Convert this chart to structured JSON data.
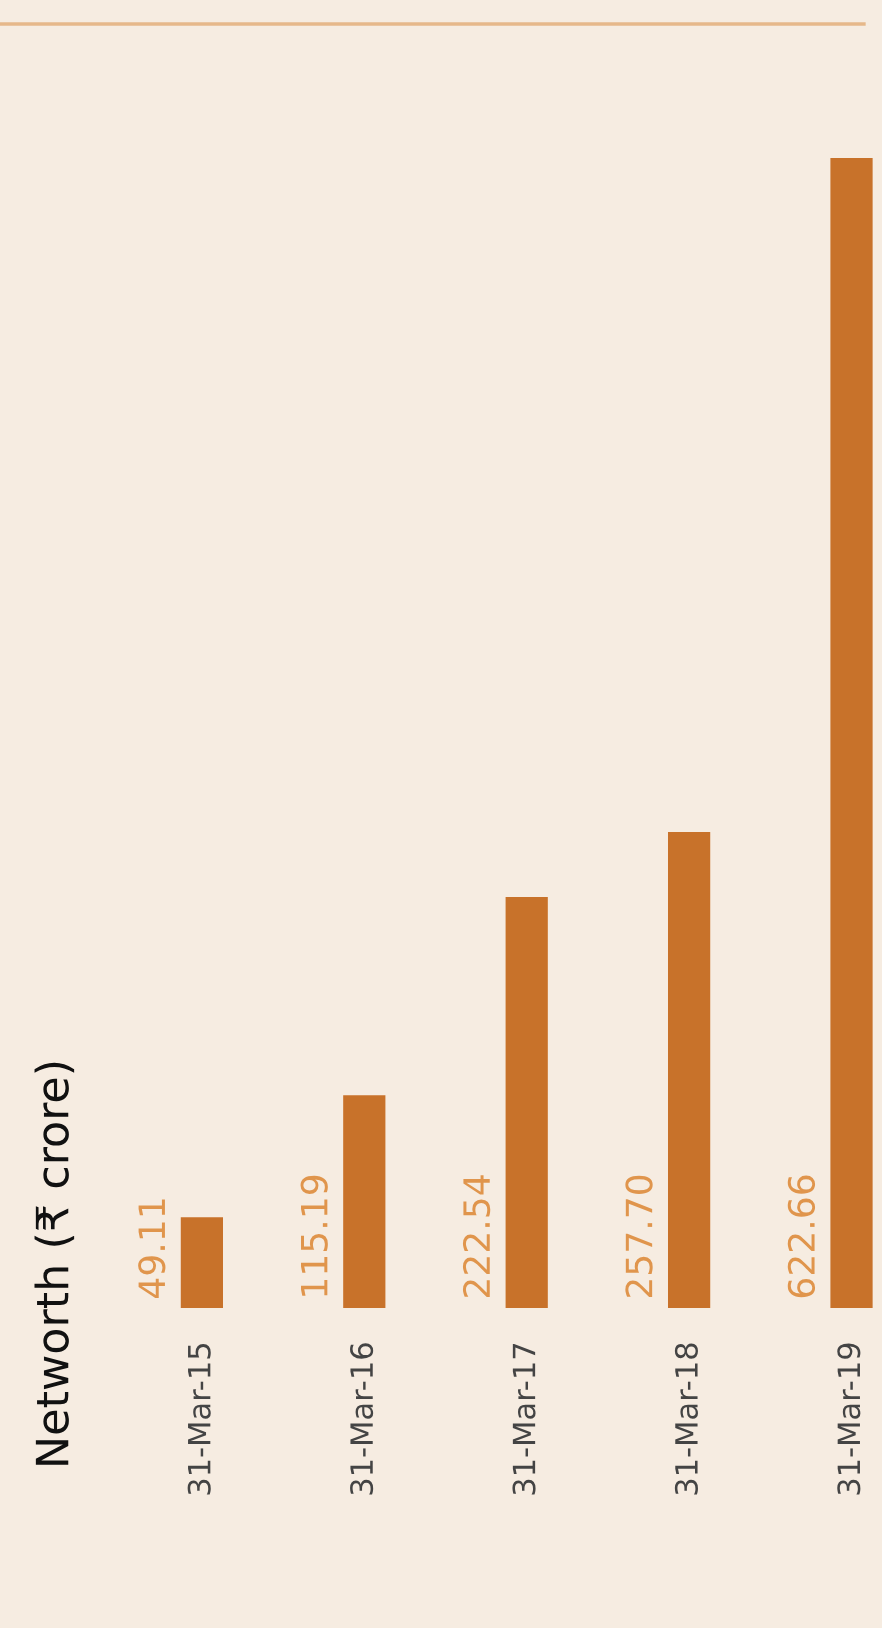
{
  "chart_data": {
    "type": "bar",
    "ylabel": "Networth (₹ crore)",
    "categories": [
      "31-Mar-15",
      "31-Mar-16",
      "31-Mar-17",
      "31-Mar-18",
      "31-Mar-19"
    ],
    "values": [
      49.11,
      115.19,
      222.54,
      257.7,
      622.66
    ],
    "value_labels": [
      "49.11",
      "115.19",
      "222.54",
      "257.70",
      "622.66"
    ],
    "color": "#c8722a",
    "grid": false,
    "legend": false
  }
}
